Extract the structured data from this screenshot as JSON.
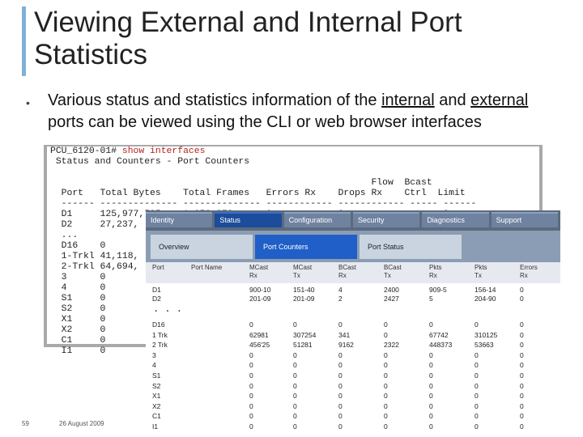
{
  "slide": {
    "title": "Viewing External and Internal Port Statistics",
    "bullet_pre": "Various status and statistics information of the ",
    "bullet_internal": "internal",
    "bullet_mid": " and ",
    "bullet_external": "external",
    "bullet_post": " ports can be viewed using the CLI or web browser interfaces",
    "number": "59",
    "date": "26 August 2009"
  },
  "cli": {
    "prompt": "PCU_6120-01# ",
    "command": "show interfaces",
    "lines": [
      " Status and Counters - Port Counters",
      "",
      "                                                          Flow  Bcast",
      "  Port   Total Bytes    Total Frames   Errors Rx    Drops Rx    Ctrl  Limit",
      "  ------ -------------- -------------- ------------ ------------ ----- ------",
      "  D1     125,977,785    1,053,272      0            0            on    0",
      "  D2     27,237,",
      "  ...",
      "  D16    0",
      "  1-Trkl 41,118,",
      "  2-Trkl 64,694,",
      "  3      0",
      "  4      0",
      "  S1     0",
      "  S2     0",
      "  X1     0",
      "  X2     0",
      "  C1     0",
      "  I1     0"
    ]
  },
  "web": {
    "nav": [
      {
        "label": "Identity",
        "active": false
      },
      {
        "label": "Status",
        "active": true
      },
      {
        "label": "Configuration",
        "active": false
      },
      {
        "label": "Security",
        "active": false
      },
      {
        "label": "Diagnostics",
        "active": false
      },
      {
        "label": "Support",
        "active": false
      }
    ],
    "subtabs": {
      "overview": "Overview",
      "port_counters": "Port Counters",
      "port_status": "Port Status"
    },
    "headers": [
      [
        "Port",
        ""
      ],
      [
        "Port Name",
        ""
      ],
      [
        "MCast",
        "Rx"
      ],
      [
        "MCast",
        "Tx"
      ],
      [
        "BCast",
        "Rx"
      ],
      [
        "BCast",
        "Tx"
      ],
      [
        "Pkts",
        "Rx"
      ],
      [
        "Pkts",
        "Tx"
      ],
      [
        "Errors",
        "Rx"
      ]
    ],
    "rows_top": [
      [
        "D1",
        "",
        "900-10",
        "151-40",
        "4",
        "2400",
        "909-5",
        "156-14",
        "0"
      ],
      [
        "D2",
        "",
        "201-09",
        "201-09",
        "2",
        "2427",
        "5",
        "204-90",
        "0"
      ]
    ],
    "ellipsis": ". . .",
    "rows": [
      [
        "D16",
        "",
        "0",
        "0",
        "0",
        "0",
        "0",
        "0",
        "0"
      ],
      [
        "1 Trk",
        "",
        "62981",
        "307254",
        "341",
        "0",
        "67742",
        "310125",
        "0"
      ],
      [
        "2 Trk",
        "",
        "456'25",
        "51281",
        "9162",
        "2322",
        "448373",
        "53663",
        "0"
      ],
      [
        "3",
        "",
        "0",
        "0",
        "0",
        "0",
        "0",
        "0",
        "0"
      ],
      [
        "4",
        "",
        "0",
        "0",
        "0",
        "0",
        "0",
        "0",
        "0"
      ],
      [
        "S1",
        "",
        "0",
        "0",
        "0",
        "0",
        "0",
        "0",
        "0"
      ],
      [
        "S2",
        "",
        "0",
        "0",
        "0",
        "0",
        "0",
        "0",
        "0"
      ],
      [
        "X1",
        "",
        "0",
        "0",
        "0",
        "0",
        "0",
        "0",
        "0"
      ],
      [
        "X2",
        "",
        "0",
        "0",
        "0",
        "0",
        "0",
        "0",
        "0"
      ],
      [
        "C1",
        "",
        "0",
        "0",
        "0",
        "0",
        "0",
        "0",
        "0"
      ],
      [
        "I1",
        "",
        "0",
        "0",
        "0",
        "0",
        "0",
        "0",
        "0"
      ]
    ]
  }
}
